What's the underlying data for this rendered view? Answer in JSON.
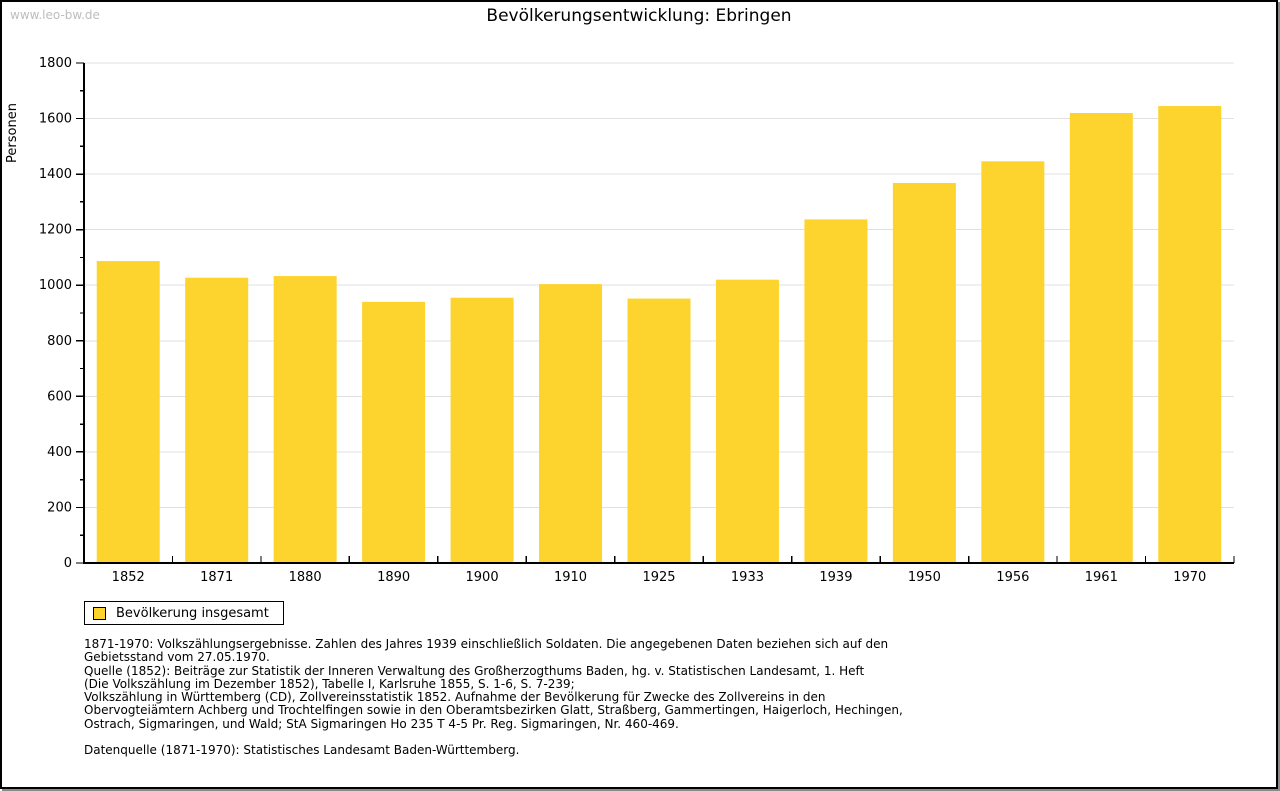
{
  "watermark": "www.leo-bw.de",
  "header": {
    "title": "Bevölkerungsentwicklung: Ebringen"
  },
  "chart_data": {
    "type": "bar",
    "title": "Bevölkerungsentwicklung: Ebringen",
    "xlabel": "",
    "ylabel": "Personen",
    "categories": [
      "1852",
      "1871",
      "1880",
      "1890",
      "1900",
      "1910",
      "1925",
      "1933",
      "1939",
      "1950",
      "1956",
      "1961",
      "1970"
    ],
    "values": [
      1087,
      1027,
      1033,
      940,
      955,
      1004,
      952,
      1020,
      1237,
      1368,
      1446,
      1620,
      1645
    ],
    "ylim": [
      0,
      1800
    ],
    "ytick_step": 200,
    "yminor_step": 100,
    "grid": true,
    "bar_color": "#FCD42D",
    "legend_position": "bottom-left",
    "legend_entries": [
      "Bevölkerung insgesamt"
    ]
  },
  "legend": {
    "label": "Bevölkerung insgesamt"
  },
  "footnotes": {
    "lines": [
      "1871-1970: Volkszählungsergebnisse. Zahlen des Jahres 1939 einschließlich Soldaten. Die angegebenen Daten beziehen sich auf den",
      "Gebietsstand vom 27.05.1970.",
      "Quelle (1852): Beiträge zur Statistik der Inneren Verwaltung des Großherzogthums Baden, hg. v. Statistischen Landesamt, 1. Heft",
      "(Die Volkszählung im Dezember 1852), Tabelle I, Karlsruhe 1855, S. 1-6, S. 7-239;",
      "Volkszählung in Württemberg (CD), Zollvereinsstatistik 1852. Aufnahme der Bevölkerung für Zwecke des Zollvereins in den",
      "Obervogteiämtern Achberg und Trochtelfingen sowie in den Oberamtsbezirken Glatt, Straßberg, Gammertingen, Haigerloch, Hechingen,",
      "Ostrach, Sigmaringen, und Wald; StA Sigmaringen Ho 235 T 4-5 Pr. Reg. Sigmaringen, Nr. 460-469."
    ],
    "datenquelle": "Datenquelle (1871-1970): Statistisches Landesamt Baden-Württemberg."
  },
  "colors": {
    "bar": "#FCD42D",
    "gridline": "#E0E0E0",
    "axis": "#000000",
    "watermark": "#BDBDBD",
    "background": "#FFFFFF"
  }
}
